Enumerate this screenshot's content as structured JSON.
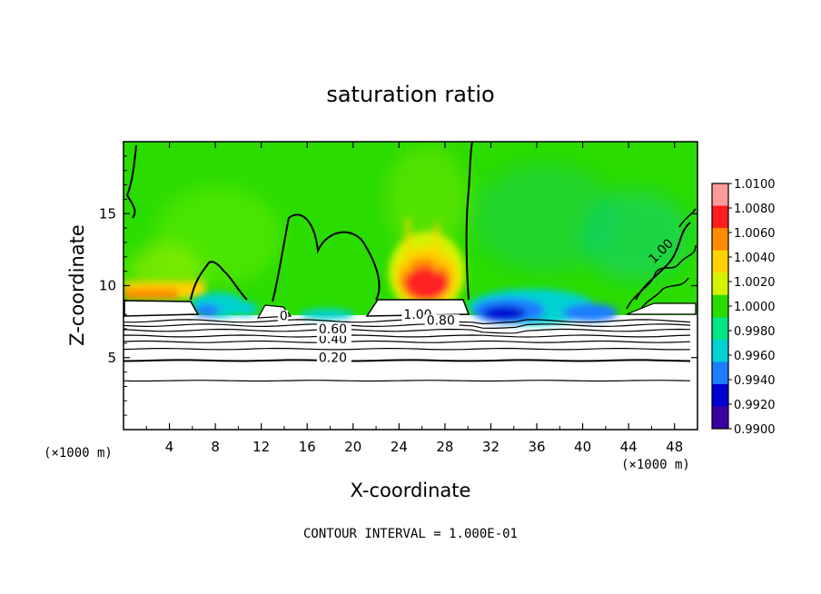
{
  "chart_data": {
    "type": "heatmap",
    "title": "saturation ratio",
    "xlabel": "X-coordinate",
    "ylabel": "Z-coordinate",
    "x_unit": "(×1000 m)",
    "y_unit": "(×1000 m)",
    "xlim": [
      0,
      50
    ],
    "ylim": [
      0,
      20
    ],
    "xticks": [
      4,
      8,
      12,
      16,
      20,
      24,
      28,
      32,
      36,
      40,
      44,
      48
    ],
    "yticks": [
      5,
      10,
      15
    ],
    "xtick_labels": [
      "4",
      "8",
      "12",
      "16",
      "20",
      "24",
      "28",
      "32",
      "36",
      "40",
      "44",
      "48"
    ],
    "ytick_labels": [
      "5",
      "10",
      "15"
    ],
    "colorbar": {
      "ticks": [
        1.01,
        1.008,
        1.006,
        1.004,
        1.002,
        1.0,
        0.998,
        0.996,
        0.994,
        0.992,
        0.99
      ],
      "tick_labels": [
        "1.0100",
        "1.0080",
        "1.0060",
        "1.0040",
        "1.0020",
        "1.0000",
        "0.9980",
        "0.9960",
        "0.9940",
        "0.9920",
        "0.9900"
      ],
      "colors": [
        "#ff9a9a",
        "#ff1c1c",
        "#ff8c00",
        "#ffd200",
        "#d6f200",
        "#28dc00",
        "#00e680",
        "#00d2d2",
        "#1e7dff",
        "#0000d2",
        "#3c00a0"
      ]
    },
    "contour_labels": [
      {
        "text": "0.20",
        "x": 17.0,
        "y": 4.7
      },
      {
        "text": "0.40",
        "x": 17.0,
        "y": 6.0
      },
      {
        "text": "0.60",
        "x": 17.0,
        "y": 6.7
      },
      {
        "text": "1.00",
        "x": 24.4,
        "y": 7.7
      },
      {
        "text": "0.80",
        "x": 26.4,
        "y": 7.3
      },
      {
        "text": "0",
        "x": 13.6,
        "y": 7.6
      },
      {
        "text": "1.00",
        "x": 46.2,
        "y": 11.5
      }
    ],
    "contour_levels_below_cloud": [
      3.4,
      4.8,
      5.6,
      6.1,
      6.5,
      6.9,
      7.25,
      7.55
    ],
    "cloud_base": 7.8,
    "field_regions": [
      {
        "name": "supersaturated-core",
        "x": [
          23,
          29
        ],
        "z": [
          8.8,
          14.5
        ],
        "value": 1.006
      },
      {
        "name": "subsaturated-band-east",
        "x": [
          30,
          44
        ],
        "z": [
          7.8,
          10.5
        ],
        "value": 0.993
      },
      {
        "name": "subsaturated-band-west",
        "x": [
          6,
          13
        ],
        "z": [
          7.8,
          9.5
        ],
        "value": 0.995
      },
      {
        "name": "saturated-background",
        "x": [
          0,
          50
        ],
        "z": [
          7.8,
          20
        ],
        "value": 1.0
      }
    ]
  },
  "footer": {
    "contour_interval": "CONTOUR INTERVAL = 1.000E-01"
  }
}
